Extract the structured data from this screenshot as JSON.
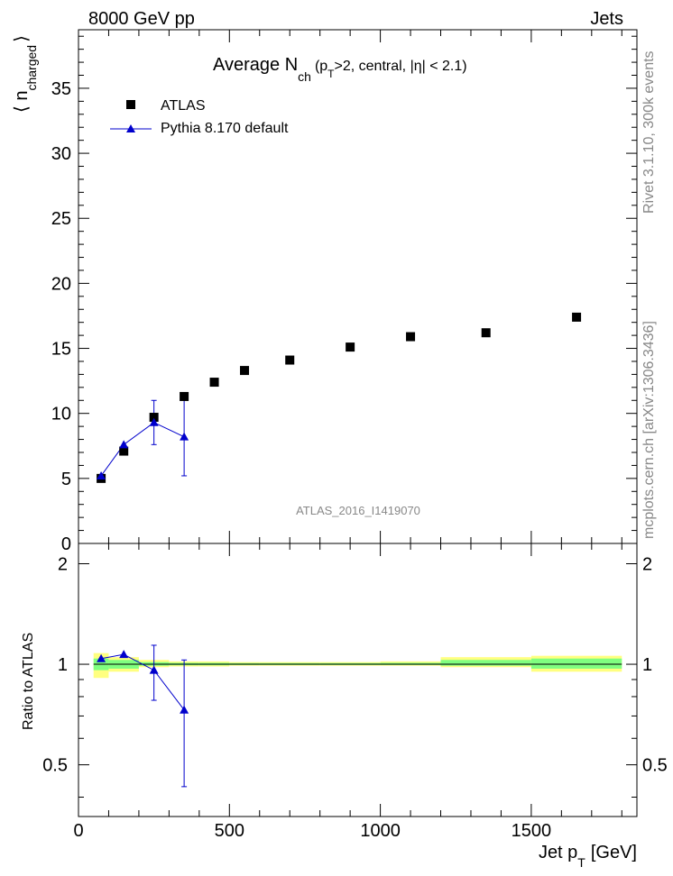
{
  "header": {
    "left": "8000 GeV pp",
    "right": "Jets"
  },
  "side_labels": {
    "rivet": "Rivet 3.1.10,  300k events",
    "mcplots": "mcplots.cern.ch [arXiv:1306.3436]"
  },
  "colors": {
    "atlas": "#000000",
    "pythia": "#0000cc",
    "band_outer": "#ffff80",
    "band_inner": "#80ff80",
    "watermark": "#888888"
  },
  "chart_data": [
    {
      "type": "scatter",
      "title_main": "Average N",
      "title_sub": "ch",
      "title_rest": "(p",
      "title_rest_sub": "T",
      "title_tail": ">2, central, |η| < 2.1)",
      "ylabel_main": "⟨ n",
      "ylabel_sub": "charged",
      "ylabel_close": "⟩",
      "xlim": [
        0,
        1850
      ],
      "ylim": [
        0,
        39.5
      ],
      "yticks": [
        0,
        5,
        10,
        15,
        20,
        25,
        30,
        35
      ],
      "watermark": "ATLAS_2016_I1419070",
      "legend": [
        "ATLAS",
        "Pythia 8.170 default"
      ],
      "legend_position": "top-left",
      "series": [
        {
          "name": "ATLAS",
          "marker": "square",
          "x": [
            75,
            150,
            250,
            350,
            450,
            550,
            700,
            900,
            1100,
            1350,
            1650
          ],
          "y": [
            5.0,
            7.1,
            9.7,
            11.3,
            12.4,
            13.3,
            14.1,
            15.1,
            15.9,
            16.2,
            17.4
          ]
        },
        {
          "name": "Pythia 8.170 default",
          "marker": "triangle",
          "x": [
            75,
            150,
            250,
            350
          ],
          "y": [
            5.2,
            7.6,
            9.3,
            8.2
          ],
          "err": [
            0.15,
            0.15,
            1.7,
            3.0
          ]
        }
      ]
    },
    {
      "type": "scatter",
      "ylabel": "Ratio to ATLAS",
      "xlabel_main": "Jet p",
      "xlabel_sub": "T",
      "xlabel_tail": "[GeV]",
      "xlim": [
        0,
        1850
      ],
      "ylim": [
        0.35,
        2.3
      ],
      "xticks": [
        0,
        500,
        1000,
        1500
      ],
      "yticks": [
        0.5,
        1,
        2
      ],
      "bands": [
        {
          "x0": 50,
          "x1": 100,
          "outer": [
            0.91,
            1.08
          ],
          "inner": [
            0.96,
            1.04
          ]
        },
        {
          "x0": 100,
          "x1": 200,
          "outer": [
            0.95,
            1.05
          ],
          "inner": [
            0.97,
            1.03
          ]
        },
        {
          "x0": 200,
          "x1": 300,
          "outer": [
            0.98,
            1.03
          ],
          "inner": [
            0.99,
            1.015
          ]
        },
        {
          "x0": 300,
          "x1": 400,
          "outer": [
            0.985,
            1.02
          ],
          "inner": [
            0.993,
            1.01
          ]
        },
        {
          "x0": 400,
          "x1": 500,
          "outer": [
            0.985,
            1.02
          ],
          "inner": [
            0.993,
            1.01
          ]
        },
        {
          "x0": 500,
          "x1": 600,
          "outer": [
            0.99,
            1.015
          ],
          "inner": [
            0.995,
            1.008
          ]
        },
        {
          "x0": 600,
          "x1": 800,
          "outer": [
            0.99,
            1.015
          ],
          "inner": [
            0.995,
            1.008
          ]
        },
        {
          "x0": 800,
          "x1": 1000,
          "outer": [
            0.99,
            1.015
          ],
          "inner": [
            0.995,
            1.008
          ]
        },
        {
          "x0": 1000,
          "x1": 1200,
          "outer": [
            0.99,
            1.02
          ],
          "inner": [
            0.995,
            1.01
          ]
        },
        {
          "x0": 1200,
          "x1": 1500,
          "outer": [
            0.98,
            1.05
          ],
          "inner": [
            0.99,
            1.03
          ]
        },
        {
          "x0": 1500,
          "x1": 1800,
          "outer": [
            0.95,
            1.06
          ],
          "inner": [
            0.97,
            1.04
          ]
        }
      ],
      "series": [
        {
          "name": "Pythia 8.170 default",
          "marker": "triangle",
          "x": [
            75,
            150,
            250,
            350
          ],
          "y": [
            1.04,
            1.07,
            0.96,
            0.73
          ],
          "err": [
            0.01,
            0.01,
            0.18,
            0.3
          ]
        }
      ]
    }
  ]
}
